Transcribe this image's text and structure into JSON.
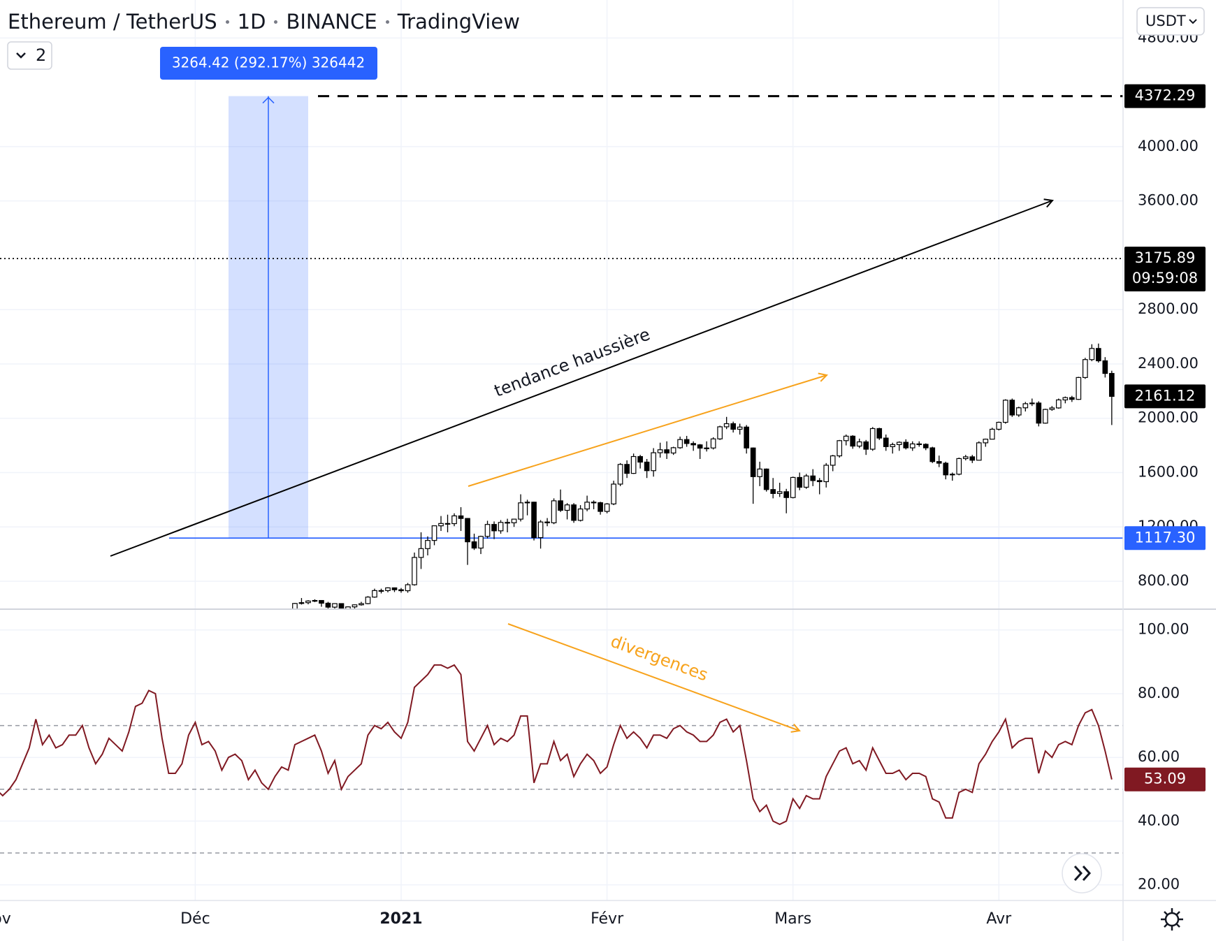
{
  "chart_data": [
    {
      "type": "candlestick",
      "symbol": "Ethereum / TetherUS",
      "interval": "1D",
      "exchange": "BINANCE",
      "source": "TradingView",
      "indicators": 2,
      "currency": "USDT",
      "up_color": "#ffffff",
      "down_color": "#000000",
      "xlim": [
        0.6,
        169.7
      ],
      "ylim": [
        594,
        5080
      ],
      "yticks": [
        {
          "value": 800,
          "label": "800.00"
        },
        {
          "value": 1200,
          "label": "1200.00"
        },
        {
          "value": 1600,
          "label": "1600.00"
        },
        {
          "value": 2000,
          "label": "2000.00"
        },
        {
          "value": 2400,
          "label": "2400.00"
        },
        {
          "value": 2800,
          "label": "2800.00"
        },
        {
          "value": 3600,
          "label": "3600.00"
        },
        {
          "value": 4000,
          "label": "4000.00"
        },
        {
          "value": 4800,
          "label": "4800.00"
        }
      ],
      "price_lines": [
        {
          "value": 4372.29,
          "style": "dashed",
          "color": "#000000"
        },
        {
          "value": 3175.89,
          "style": "dotted",
          "color": "#000000",
          "countdown": "09:59:08"
        },
        {
          "value": 1117.3,
          "label": "1117.30",
          "style": "solid",
          "color": "#2962ff"
        }
      ],
      "measure": "3264.42 (292.17%) 326442",
      "annotations": [
        "tendance haussière"
      ],
      "candles": [
        [
          44,
          578,
          598,
          570,
          590
        ],
        [
          45,
          590,
          640,
          588,
          636
        ],
        [
          46,
          636,
          676,
          628,
          642
        ],
        [
          47,
          642,
          660,
          630,
          654
        ],
        [
          48,
          654,
          667,
          646,
          658
        ],
        [
          49,
          658,
          660,
          612,
          638
        ],
        [
          50,
          638,
          648,
          586,
          609
        ],
        [
          51,
          609,
          638,
          597,
          635
        ],
        [
          52,
          635,
          636,
          581,
          584
        ],
        [
          53,
          584,
          615,
          582,
          611
        ],
        [
          54,
          611,
          629,
          598,
          626
        ],
        [
          55,
          626,
          648,
          620,
          635
        ],
        [
          56,
          635,
          690,
          630,
          683
        ],
        [
          57,
          683,
          745,
          678,
          731
        ],
        [
          58,
          731,
          745,
          710,
          731
        ],
        [
          59,
          731,
          755,
          718,
          751
        ],
        [
          60,
          751,
          754,
          720,
          737
        ],
        [
          61,
          737,
          750,
          715,
          730
        ],
        [
          62,
          730,
          787,
          715,
          774
        ],
        [
          63,
          774,
          1011,
          767,
          975
        ],
        [
          64,
          975,
          1160,
          890,
          1040
        ],
        [
          65,
          1040,
          1130,
          990,
          1100
        ],
        [
          66,
          1100,
          1210,
          1065,
          1208
        ],
        [
          67,
          1208,
          1280,
          1170,
          1225
        ],
        [
          68,
          1225,
          1290,
          1160,
          1224
        ],
        [
          69,
          1224,
          1300,
          1205,
          1281
        ],
        [
          70,
          1281,
          1345,
          1170,
          1262
        ],
        [
          71,
          1262,
          1265,
          920,
          1090
        ],
        [
          72,
          1090,
          1150,
          1030,
          1044
        ],
        [
          73,
          1044,
          1135,
          1000,
          1130
        ],
        [
          74,
          1130,
          1245,
          1115,
          1218
        ],
        [
          75,
          1218,
          1240,
          1110,
          1171
        ],
        [
          76,
          1171,
          1250,
          1150,
          1233
        ],
        [
          77,
          1233,
          1260,
          1160,
          1230
        ],
        [
          78,
          1230,
          1260,
          1200,
          1257
        ],
        [
          79,
          1257,
          1440,
          1240,
          1377
        ],
        [
          80,
          1377,
          1400,
          1285,
          1382
        ],
        [
          81,
          1382,
          1385,
          1100,
          1121
        ],
        [
          82,
          1121,
          1250,
          1040,
          1236
        ],
        [
          83,
          1236,
          1265,
          1205,
          1230
        ],
        [
          84,
          1230,
          1410,
          1220,
          1392
        ],
        [
          85,
          1392,
          1475,
          1310,
          1322
        ],
        [
          86,
          1322,
          1375,
          1255,
          1362
        ],
        [
          87,
          1362,
          1375,
          1230,
          1248
        ],
        [
          88,
          1248,
          1360,
          1240,
          1332
        ],
        [
          89,
          1332,
          1430,
          1315,
          1382
        ],
        [
          90,
          1382,
          1395,
          1330,
          1378
        ],
        [
          91,
          1378,
          1385,
          1290,
          1314
        ],
        [
          92,
          1314,
          1375,
          1300,
          1369
        ],
        [
          93,
          1369,
          1540,
          1360,
          1515
        ],
        [
          94,
          1515,
          1670,
          1500,
          1660
        ],
        [
          95,
          1660,
          1690,
          1560,
          1594
        ],
        [
          96,
          1594,
          1740,
          1590,
          1718
        ],
        [
          97,
          1718,
          1730,
          1630,
          1677
        ],
        [
          98,
          1677,
          1700,
          1560,
          1614
        ],
        [
          99,
          1614,
          1780,
          1570,
          1746
        ],
        [
          100,
          1746,
          1820,
          1710,
          1768
        ],
        [
          101,
          1768,
          1830,
          1700,
          1744
        ],
        [
          102,
          1744,
          1790,
          1730,
          1783
        ],
        [
          103,
          1783,
          1865,
          1775,
          1843
        ],
        [
          104,
          1843,
          1870,
          1790,
          1814
        ],
        [
          105,
          1814,
          1830,
          1760,
          1804
        ],
        [
          106,
          1804,
          1810,
          1700,
          1780
        ],
        [
          107,
          1780,
          1830,
          1755,
          1781
        ],
        [
          108,
          1781,
          1860,
          1770,
          1848
        ],
        [
          109,
          1848,
          1945,
          1840,
          1937
        ],
        [
          110,
          1937,
          2010,
          1920,
          1960
        ],
        [
          111,
          1960,
          1975,
          1895,
          1919
        ],
        [
          112,
          1919,
          1960,
          1880,
          1935
        ],
        [
          113,
          1935,
          1950,
          1740,
          1781
        ],
        [
          114,
          1781,
          1785,
          1370,
          1570
        ],
        [
          115,
          1570,
          1680,
          1500,
          1626
        ],
        [
          116,
          1626,
          1630,
          1460,
          1475
        ],
        [
          117,
          1475,
          1560,
          1410,
          1446
        ],
        [
          118,
          1446,
          1525,
          1420,
          1459
        ],
        [
          119,
          1459,
          1480,
          1300,
          1416
        ],
        [
          120,
          1416,
          1570,
          1410,
          1564
        ],
        [
          121,
          1564,
          1600,
          1470,
          1492
        ],
        [
          122,
          1492,
          1590,
          1480,
          1575
        ],
        [
          123,
          1575,
          1625,
          1500,
          1541
        ],
        [
          124,
          1541,
          1560,
          1440,
          1533
        ],
        [
          125,
          1533,
          1670,
          1490,
          1654
        ],
        [
          126,
          1654,
          1730,
          1610,
          1723
        ],
        [
          127,
          1723,
          1840,
          1710,
          1835
        ],
        [
          128,
          1835,
          1880,
          1800,
          1868
        ],
        [
          129,
          1868,
          1875,
          1775,
          1795
        ],
        [
          130,
          1795,
          1850,
          1780,
          1826
        ],
        [
          131,
          1826,
          1840,
          1730,
          1772
        ],
        [
          132,
          1772,
          1935,
          1760,
          1924
        ],
        [
          133,
          1924,
          1930,
          1840,
          1854
        ],
        [
          134,
          1854,
          1880,
          1760,
          1791
        ],
        [
          135,
          1791,
          1820,
          1740,
          1806
        ],
        [
          136,
          1806,
          1830,
          1760,
          1823
        ],
        [
          137,
          1823,
          1845,
          1770,
          1782
        ],
        [
          138,
          1782,
          1830,
          1760,
          1811
        ],
        [
          139,
          1811,
          1830,
          1790,
          1808
        ],
        [
          140,
          1808,
          1815,
          1765,
          1782
        ],
        [
          141,
          1782,
          1790,
          1670,
          1681
        ],
        [
          142,
          1681,
          1725,
          1640,
          1669
        ],
        [
          143,
          1669,
          1680,
          1550,
          1583
        ],
        [
          144,
          1583,
          1600,
          1540,
          1588
        ],
        [
          145,
          1588,
          1710,
          1580,
          1703
        ],
        [
          146,
          1703,
          1730,
          1690,
          1716
        ],
        [
          147,
          1716,
          1730,
          1670,
          1691
        ],
        [
          148,
          1691,
          1830,
          1690,
          1819
        ],
        [
          149,
          1819,
          1850,
          1790,
          1846
        ],
        [
          150,
          1846,
          1930,
          1845,
          1919
        ],
        [
          151,
          1919,
          1975,
          1910,
          1970
        ],
        [
          152,
          1970,
          2140,
          1960,
          2133
        ],
        [
          153,
          2133,
          2145,
          2010,
          2024
        ],
        [
          154,
          2024,
          2085,
          2010,
          2077
        ],
        [
          155,
          2077,
          2120,
          2050,
          2107
        ],
        [
          156,
          2107,
          2145,
          2090,
          2112
        ],
        [
          157,
          2112,
          2125,
          1940,
          1964
        ],
        [
          158,
          1964,
          2070,
          1960,
          2065
        ],
        [
          159,
          2065,
          2090,
          2055,
          2076
        ],
        [
          160,
          2076,
          2145,
          2070,
          2135
        ],
        [
          161,
          2135,
          2160,
          2110,
          2152
        ],
        [
          162,
          2152,
          2165,
          2120,
          2139
        ],
        [
          163,
          2139,
          2305,
          2135,
          2300
        ],
        [
          164,
          2300,
          2445,
          2290,
          2432
        ],
        [
          165,
          2432,
          2545,
          2420,
          2514
        ],
        [
          166,
          2514,
          2550,
          2410,
          2423
        ],
        [
          167,
          2423,
          2450,
          2300,
          2330
        ],
        [
          168,
          2330,
          2350,
          1950,
          2161.12
        ]
      ]
    },
    {
      "type": "line",
      "xlim": [
        0.6,
        169.7
      ],
      "ylim": [
        15.1,
        106.3
      ],
      "yticks": [
        {
          "value": 20,
          "label": "20.00"
        },
        {
          "value": 40,
          "label": "40.00"
        },
        {
          "value": 60,
          "label": "60.00"
        },
        {
          "value": 80,
          "label": "80.00"
        },
        {
          "value": 100,
          "label": "100.00"
        }
      ],
      "levels": [
        70,
        50,
        30
      ],
      "xticks": [
        {
          "value": 0,
          "label": "Nov"
        },
        {
          "value": 30,
          "label": "Déc"
        },
        {
          "value": 61,
          "label": "2021"
        },
        {
          "value": 92,
          "label": "Févr"
        },
        {
          "value": 120,
          "label": "Mars"
        },
        {
          "value": 151,
          "label": "Avr"
        }
      ],
      "annotations": [
        "divergences"
      ],
      "series": [
        {
          "color": "#801922",
          "values": [
            50,
            48,
            50,
            53,
            58,
            63,
            72,
            64,
            67,
            63,
            64,
            67,
            67,
            70,
            63,
            58,
            61,
            66,
            64,
            62,
            68,
            76,
            77,
            81,
            80,
            66,
            55,
            55,
            58,
            67,
            71,
            64,
            65,
            62,
            56,
            60,
            61,
            59,
            53,
            56,
            52,
            50,
            54,
            57,
            56,
            64,
            65,
            66,
            67,
            62,
            55,
            59,
            50,
            54,
            56,
            58,
            67,
            70,
            69,
            71,
            68,
            66,
            71,
            82,
            84,
            86,
            89,
            89,
            88,
            89,
            86,
            65,
            62,
            66,
            70,
            64,
            66,
            65,
            67,
            73,
            73,
            52,
            58,
            58,
            65,
            59,
            61,
            54,
            58,
            61,
            59,
            55,
            57,
            64,
            70,
            66,
            68,
            66,
            63,
            67,
            67,
            66,
            69,
            70,
            68,
            67,
            65,
            65,
            67,
            71,
            72,
            68,
            70,
            59,
            47,
            43,
            45,
            40,
            39,
            40,
            47,
            44,
            48,
            47,
            47,
            54,
            58,
            62,
            63,
            58,
            59,
            56,
            63,
            59,
            55,
            55,
            56,
            53,
            55,
            55,
            54,
            47,
            46,
            41,
            41,
            49,
            50,
            49,
            58,
            61,
            65,
            68,
            72,
            63,
            65,
            66,
            66,
            55,
            62,
            60,
            64,
            65,
            64,
            70,
            74,
            75,
            70,
            62,
            53.09
          ]
        }
      ]
    }
  ]
}
